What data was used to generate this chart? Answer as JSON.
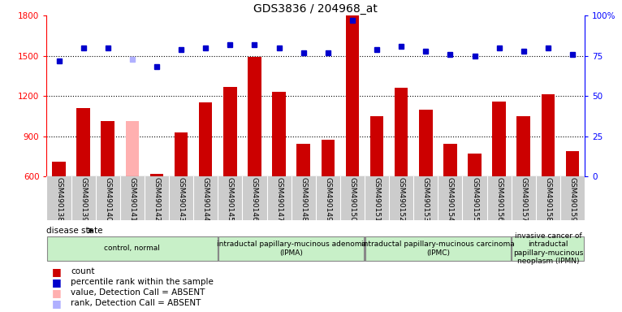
{
  "title": "GDS3836 / 204968_at",
  "samples": [
    "GSM490138",
    "GSM490139",
    "GSM490140",
    "GSM490141",
    "GSM490142",
    "GSM490143",
    "GSM490144",
    "GSM490145",
    "GSM490146",
    "GSM490147",
    "GSM490148",
    "GSM490149",
    "GSM490150",
    "GSM490151",
    "GSM490152",
    "GSM490153",
    "GSM490154",
    "GSM490155",
    "GSM490156",
    "GSM490157",
    "GSM490158",
    "GSM490159"
  ],
  "counts": [
    710,
    1110,
    1010,
    1010,
    620,
    930,
    1150,
    1270,
    1490,
    1230,
    840,
    870,
    1800,
    1050,
    1260,
    1100,
    840,
    770,
    1160,
    1050,
    1210,
    790
  ],
  "percentiles": [
    72,
    80,
    80,
    73,
    68,
    79,
    80,
    82,
    82,
    80,
    77,
    77,
    97,
    79,
    81,
    78,
    76,
    75,
    80,
    78,
    80,
    76
  ],
  "absent_mask": [
    false,
    false,
    false,
    true,
    false,
    false,
    false,
    false,
    false,
    false,
    false,
    false,
    false,
    false,
    false,
    false,
    false,
    false,
    false,
    false,
    false,
    false
  ],
  "groups": [
    {
      "label": "control, normal",
      "start": 0,
      "end": 7,
      "color": "#c8f0c8"
    },
    {
      "label": "intraductal papillary-mucinous adenoma\n(IPMA)",
      "start": 7,
      "end": 13,
      "color": "#c8f0c8"
    },
    {
      "label": "intraductal papillary-mucinous carcinoma\n(IPMC)",
      "start": 13,
      "end": 19,
      "color": "#c8f0c8"
    },
    {
      "label": "invasive cancer of\nintraductal\npapillary-mucinous\nneoplasm (IPMN)",
      "start": 19,
      "end": 22,
      "color": "#c8f0c8"
    }
  ],
  "bar_color": "#cc0000",
  "absent_bar_color": "#ffb0b0",
  "dot_color": "#0000cc",
  "absent_dot_color": "#b0b0ff",
  "ylim_left": [
    600,
    1800
  ],
  "ylim_right": [
    0,
    100
  ],
  "yticks_left": [
    600,
    900,
    1200,
    1500,
    1800
  ],
  "yticks_right": [
    0,
    25,
    50,
    75,
    100
  ],
  "background_plot": "#ffffff",
  "background_ticker": "#cccccc"
}
